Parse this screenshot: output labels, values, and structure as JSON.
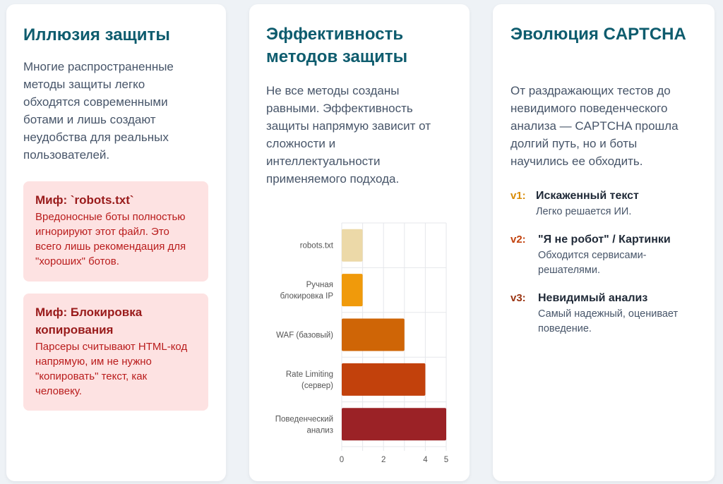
{
  "colors": {
    "title": "#0e5c6e",
    "myth_bg": "#fde2e2",
    "myth_title": "#991b1b",
    "myth_text": "#b91c1c",
    "v1": "#d98b06",
    "v2": "#c2410c",
    "v3": "#9a3412"
  },
  "card1": {
    "title": "Иллюзия защиты",
    "text": "Многие распространенные методы защиты легко обходятся современными ботами и лишь создают неудобства для реальных пользователей.",
    "myths": [
      {
        "title": "Миф: `robots.txt`",
        "text": "Вредоносные боты полностью игнорируют этот файл. Это всего лишь рекомендация для \"хороших\" ботов."
      },
      {
        "title": "Миф: Блокировка копирования",
        "text": "Парсеры считывают HTML-код напрямую, им не нужно \"копировать\" текст, как человеку."
      }
    ]
  },
  "card2": {
    "title": "Эффективность методов защиты",
    "text": "Не все методы созданы равными. Эффективность защиты напрямую зависит от сложности и интеллектуальности применяемого подхода."
  },
  "chart_data": {
    "type": "bar",
    "orientation": "horizontal",
    "categories": [
      [
        "robots.txt"
      ],
      [
        "Ручная",
        "блокировка IP"
      ],
      [
        "WAF (базовый)"
      ],
      [
        "Rate Limiting",
        "(сервер)"
      ],
      [
        "Поведенческий",
        "анализ"
      ]
    ],
    "values": [
      1,
      1,
      3,
      4,
      5
    ],
    "colors": [
      "#ecd9a8",
      "#f09a0b",
      "#cf6506",
      "#c2410c",
      "#9b2226"
    ],
    "x_ticks": [
      "0",
      "2",
      "4",
      "5"
    ],
    "xlim": [
      0,
      5
    ],
    "grid": true,
    "legend": "none"
  },
  "card3": {
    "title": "Эволюция CAPTCHA",
    "text": "От раздражающих тестов до невидимого поведенческого анализа — CAPTCHA прошла долгий путь, но и боты научились ее обходить.",
    "versions": [
      {
        "tag": "v1:",
        "title": "Искаженный текст",
        "desc": "Легко решается ИИ."
      },
      {
        "tag": "v2:",
        "title": "\"Я не робот\" / Картинки",
        "desc": "Обходится сервисами-решателями."
      },
      {
        "tag": "v3:",
        "title": "Невидимый анализ",
        "desc": "Самый надежный, оценивает поведение."
      }
    ]
  }
}
